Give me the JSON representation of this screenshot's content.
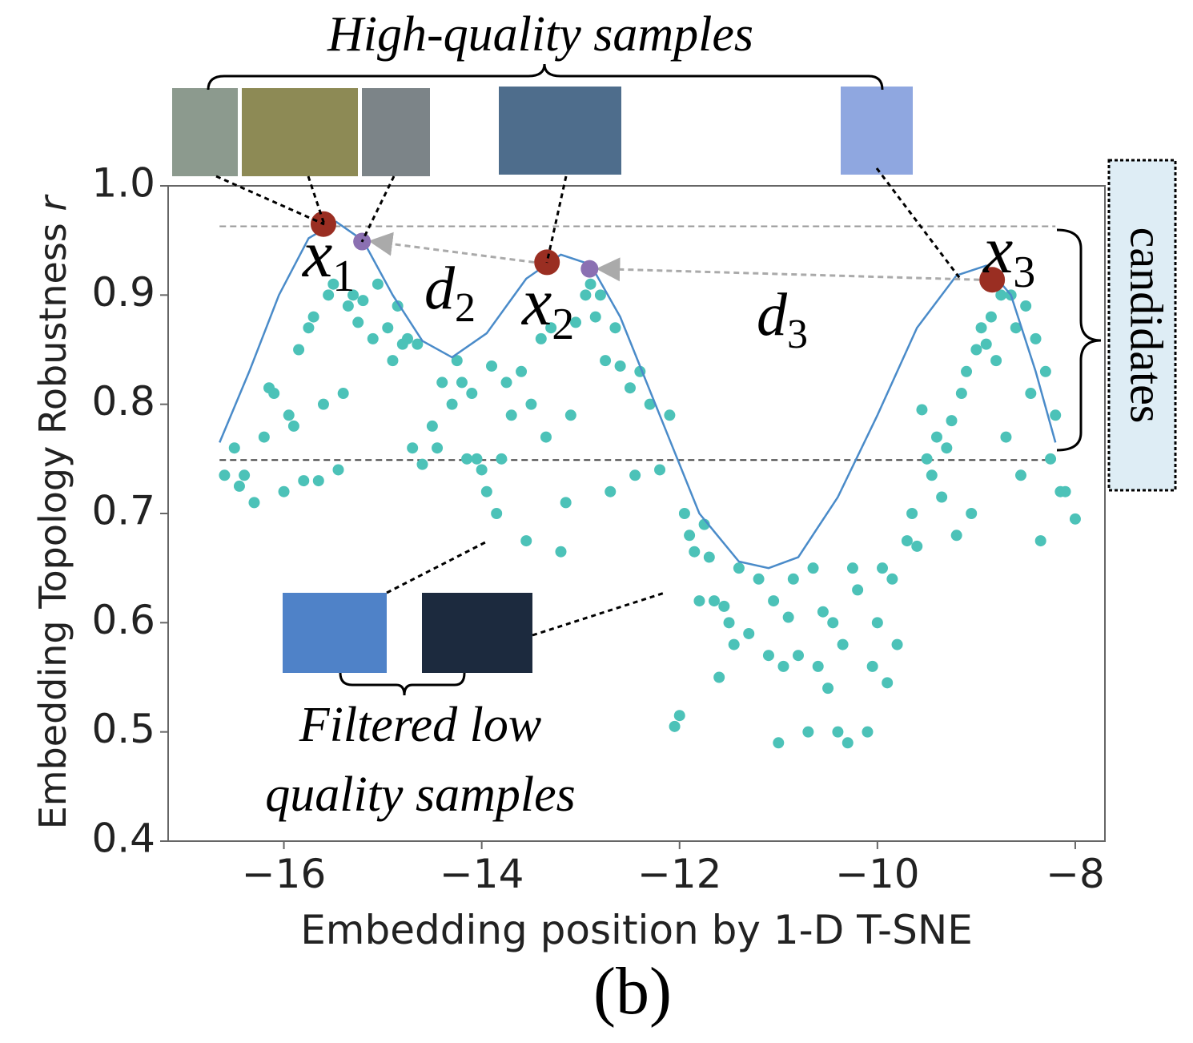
{
  "chart_data": {
    "type": "scatter",
    "title": "High-quality samples",
    "side_label": "candidates",
    "filtered_label": [
      "Filtered low",
      "quality samples"
    ],
    "caption": "(b)",
    "xlabel": "Embedding position by 1-D T-SNE",
    "ylabel": "Embedding Topology Robustness",
    "ylabel_var": "r",
    "xlim": [
      -17.17,
      -7.7
    ],
    "ylim": [
      0.4,
      1.0
    ],
    "xticks": [
      {
        "value": -16,
        "label": "−16"
      },
      {
        "value": -14,
        "label": "−14"
      },
      {
        "value": -12,
        "label": "−12"
      },
      {
        "value": -10,
        "label": "−10"
      },
      {
        "value": -8,
        "label": "−8"
      }
    ],
    "yticks": [
      0.4,
      0.5,
      0.6,
      0.7,
      0.8,
      0.9,
      {
        "value": 1,
        "label": "1.0"
      }
    ],
    "points": {
      "color": "#4cc2b8",
      "x": [
        -16.6,
        -16.5,
        -16.45,
        -16.4,
        -16.3,
        -16.2,
        -16.15,
        -16.1,
        -16.0,
        -15.95,
        -15.9,
        -15.85,
        -15.8,
        -15.75,
        -15.7,
        -15.65,
        -15.6,
        -15.55,
        -15.5,
        -15.45,
        -15.4,
        -15.35,
        -15.3,
        -15.25,
        -15.2,
        -15.1,
        -15.05,
        -14.95,
        -14.9,
        -14.85,
        -14.8,
        -14.75,
        -14.7,
        -14.65,
        -14.6,
        -14.5,
        -14.45,
        -14.4,
        -14.3,
        -14.25,
        -14.2,
        -14.15,
        -14.1,
        -14.05,
        -14.0,
        -13.95,
        -13.9,
        -13.85,
        -13.8,
        -13.75,
        -13.7,
        -13.6,
        -13.55,
        -13.5,
        -13.4,
        -13.35,
        -13.3,
        -13.2,
        -13.15,
        -13.1,
        -13.05,
        -12.95,
        -12.9,
        -12.85,
        -12.8,
        -12.75,
        -12.7,
        -12.65,
        -12.6,
        -12.5,
        -12.45,
        -12.4,
        -12.3,
        -12.2,
        -12.1,
        -12.05,
        -12.0,
        -11.95,
        -11.9,
        -11.85,
        -11.8,
        -11.75,
        -11.7,
        -11.65,
        -11.6,
        -11.55,
        -11.5,
        -11.45,
        -11.4,
        -11.3,
        -11.2,
        -11.1,
        -11.05,
        -11.0,
        -10.95,
        -10.9,
        -10.85,
        -10.8,
        -10.7,
        -10.65,
        -10.6,
        -10.55,
        -10.5,
        -10.45,
        -10.4,
        -10.35,
        -10.3,
        -10.25,
        -10.2,
        -10.1,
        -10.05,
        -10.0,
        -9.95,
        -9.9,
        -9.85,
        -9.8,
        -9.7,
        -9.65,
        -9.6,
        -9.55,
        -9.5,
        -9.45,
        -9.4,
        -9.35,
        -9.3,
        -9.25,
        -9.2,
        -9.15,
        -9.1,
        -9.05,
        -9.0,
        -8.95,
        -8.9,
        -8.85,
        -8.8,
        -8.75,
        -8.7,
        -8.65,
        -8.6,
        -8.55,
        -8.5,
        -8.45,
        -8.4,
        -8.35,
        -8.3,
        -8.25,
        -8.2,
        -8.15,
        -8.1,
        -8.0
      ],
      "y": [
        0.735,
        0.76,
        0.725,
        0.735,
        0.71,
        0.77,
        0.815,
        0.81,
        0.72,
        0.79,
        0.78,
        0.85,
        0.73,
        0.87,
        0.88,
        0.73,
        0.8,
        0.9,
        0.91,
        0.74,
        0.81,
        0.89,
        0.9,
        0.875,
        0.895,
        0.86,
        0.91,
        0.87,
        0.84,
        0.89,
        0.855,
        0.86,
        0.76,
        0.855,
        0.745,
        0.78,
        0.76,
        0.82,
        0.8,
        0.84,
        0.82,
        0.75,
        0.81,
        0.75,
        0.74,
        0.72,
        0.835,
        0.7,
        0.75,
        0.82,
        0.79,
        0.83,
        0.675,
        0.8,
        0.86,
        0.77,
        0.87,
        0.665,
        0.71,
        0.79,
        0.875,
        0.9,
        0.91,
        0.88,
        0.9,
        0.84,
        0.72,
        0.87,
        0.835,
        0.815,
        0.735,
        0.83,
        0.8,
        0.74,
        0.79,
        0.505,
        0.515,
        0.7,
        0.68,
        0.665,
        0.62,
        0.69,
        0.66,
        0.62,
        0.55,
        0.615,
        0.6,
        0.58,
        0.65,
        0.59,
        0.64,
        0.57,
        0.62,
        0.49,
        0.56,
        0.605,
        0.64,
        0.57,
        0.5,
        0.65,
        0.56,
        0.61,
        0.54,
        0.6,
        0.5,
        0.58,
        0.49,
        0.65,
        0.63,
        0.5,
        0.56,
        0.6,
        0.65,
        0.545,
        0.64,
        0.58,
        0.675,
        0.7,
        0.67,
        0.795,
        0.75,
        0.735,
        0.77,
        0.715,
        0.76,
        0.785,
        0.68,
        0.81,
        0.83,
        0.7,
        0.85,
        0.87,
        0.855,
        0.88,
        0.84,
        0.9,
        0.77,
        0.9,
        0.87,
        0.735,
        0.89,
        0.81,
        0.86,
        0.675,
        0.83,
        0.75,
        0.79,
        0.72,
        0.72,
        0.695
      ]
    },
    "curve": {
      "color": "#4a8bc9",
      "x": [
        -16.65,
        -16.35,
        -16.05,
        -15.75,
        -15.47,
        -15.2,
        -14.9,
        -14.6,
        -14.3,
        -13.95,
        -13.55,
        -13.2,
        -12.9,
        -12.6,
        -12.2,
        -11.8,
        -11.4,
        -11.1,
        -10.8,
        -10.4,
        -10.0,
        -9.6,
        -9.2,
        -8.9,
        -8.65,
        -8.4,
        -8.2
      ],
      "y": [
        0.765,
        0.83,
        0.9,
        0.952,
        0.967,
        0.95,
        0.9,
        0.858,
        0.843,
        0.865,
        0.915,
        0.937,
        0.928,
        0.88,
        0.79,
        0.7,
        0.656,
        0.65,
        0.66,
        0.715,
        0.79,
        0.87,
        0.918,
        0.927,
        0.9,
        0.83,
        0.765
      ]
    },
    "ref_lines": [
      {
        "y": 0.963,
        "x": [
          -16.65,
          -8.2
        ]
      },
      {
        "y": 0.749,
        "x": [
          -16.65,
          -8.2
        ]
      }
    ],
    "highlights": {
      "x": [
        -15.6,
        -15.21,
        -13.34,
        -12.91,
        -8.84
      ],
      "y": [
        0.965,
        0.949,
        0.93,
        0.924,
        0.914
      ],
      "colors": [
        "#9a2e22",
        "#8b70b2",
        "#9a2e22",
        "#8b70b2",
        "#9a2e22"
      ]
    },
    "point_labels": [
      {
        "base": "x",
        "sub": "1"
      },
      {
        "base": "x",
        "sub": "2"
      },
      {
        "base": "x",
        "sub": "3"
      }
    ],
    "distance_labels": [
      {
        "base": "d",
        "sub": "2"
      },
      {
        "base": "d",
        "sub": "3"
      }
    ]
  }
}
